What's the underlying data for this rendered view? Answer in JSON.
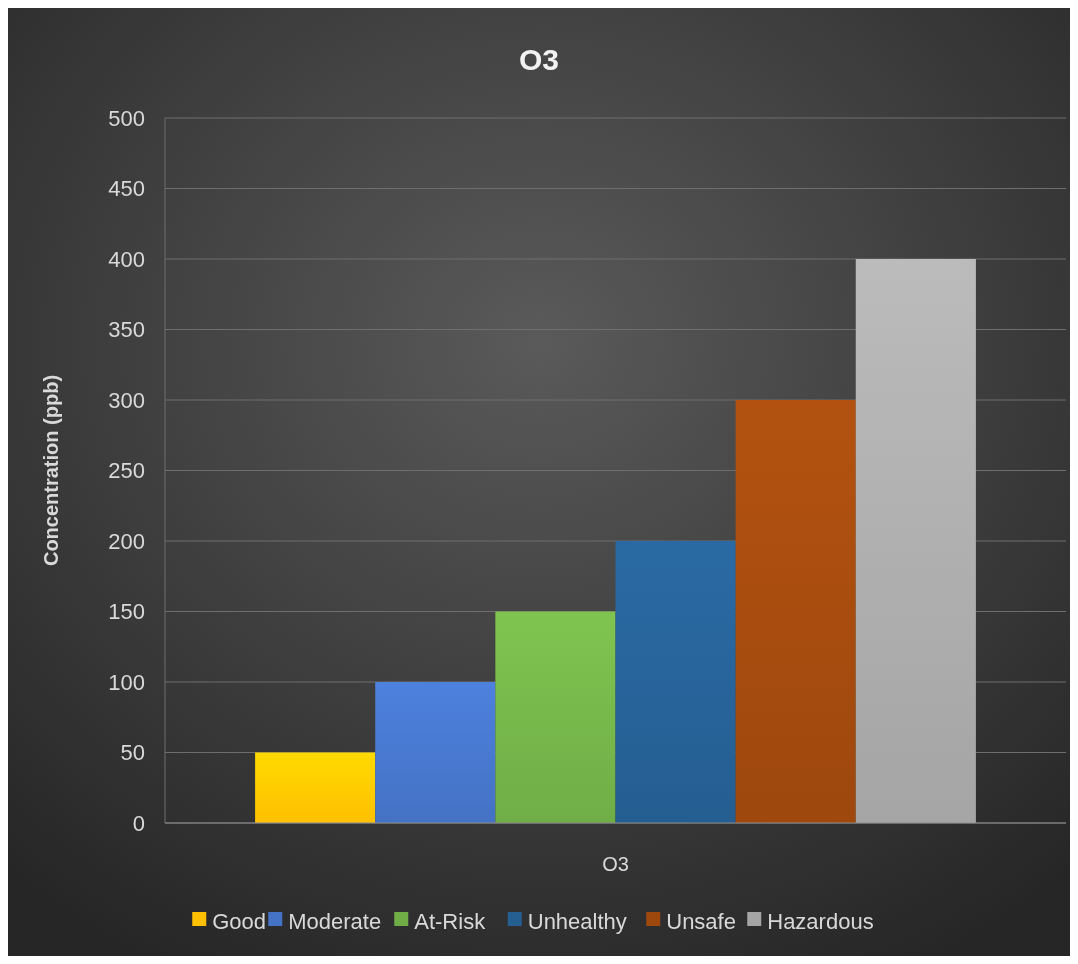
{
  "chart_data": {
    "type": "bar",
    "title": "O3",
    "ylabel": "Concentration (ppb)",
    "categories": [
      "O3"
    ],
    "series": [
      {
        "name": "Good",
        "color": "#ffc000",
        "values": [
          50
        ]
      },
      {
        "name": "Moderate",
        "color": "#4472c4",
        "values": [
          100
        ]
      },
      {
        "name": "At-Risk",
        "color": "#70ad47",
        "values": [
          150
        ]
      },
      {
        "name": "Unhealthy",
        "color": "#255e91",
        "values": [
          200
        ]
      },
      {
        "name": "Unsafe",
        "color": "#9e480e",
        "values": [
          300
        ]
      },
      {
        "name": "Hazardous",
        "color": "#a5a5a5",
        "values": [
          400
        ]
      }
    ],
    "ylim": [
      0,
      500
    ],
    "yticks": [
      0,
      50,
      100,
      150,
      200,
      250,
      300,
      350,
      400,
      450,
      500
    ],
    "grid": "y",
    "legend": "bottom"
  }
}
